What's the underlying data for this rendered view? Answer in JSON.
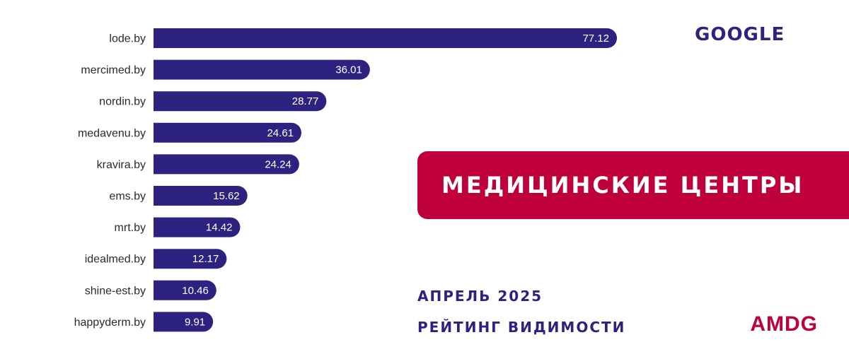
{
  "search_engine": "GOOGLE",
  "category_title": "МЕДИЦИНСКИЕ ЦЕНТРЫ",
  "period": "АПРЕЛЬ 2025",
  "subtitle": "РЕЙТИНГ ВИДИМОСТИ",
  "brand": "AMDG",
  "colors": {
    "bar": "#2e2280",
    "banner": "#c0003c",
    "accent_text": "#2e2280",
    "brand": "#c0003c"
  },
  "chart_data": {
    "type": "bar",
    "orientation": "horizontal",
    "categories": [
      "lode.by",
      "mercimed.by",
      "nordin.by",
      "medavenu.by",
      "kravira.by",
      "ems.by",
      "mrt.by",
      "idealmed.by",
      "shine-est.by",
      "happyderm.by"
    ],
    "values": [
      77.12,
      36.01,
      28.77,
      24.61,
      24.24,
      15.62,
      14.42,
      12.17,
      10.46,
      9.91
    ],
    "value_labels": [
      "77.12",
      "36.01",
      "28.77",
      "24.61",
      "24.24",
      "15.62",
      "14.42",
      "12.17",
      "10.46",
      "9.91"
    ],
    "title": "",
    "xlabel": "",
    "ylabel": "",
    "grid": false,
    "legend": "none"
  }
}
